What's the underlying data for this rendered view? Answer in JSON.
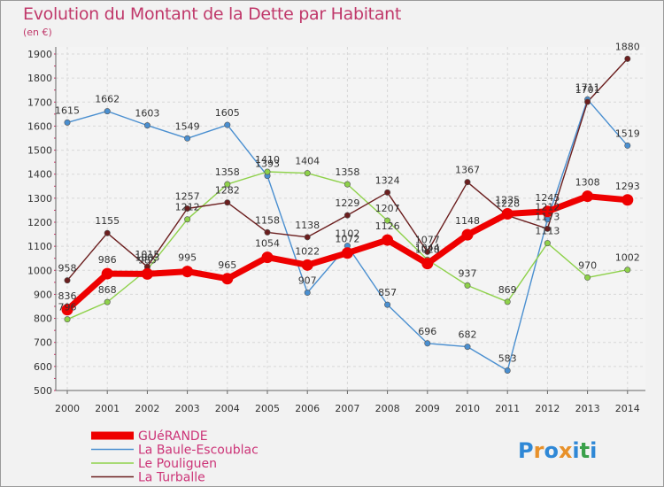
{
  "title": "Evolution du Montant de la Dette par Habitant",
  "unit": "(en €)",
  "logo": "Proxiti",
  "chart_data": {
    "type": "line",
    "x": [
      "2000",
      "2001",
      "2002",
      "2003",
      "2004",
      "2005",
      "2006",
      "2007",
      "2008",
      "2009",
      "2010",
      "2011",
      "2012",
      "2013",
      "2014"
    ],
    "ylim": [
      500,
      1900
    ],
    "yticks": [
      500,
      600,
      700,
      800,
      900,
      1000,
      1100,
      1200,
      1300,
      1400,
      1500,
      1600,
      1700,
      1800,
      1900
    ],
    "grid": true,
    "legend_position": "bottom-left",
    "series": [
      {
        "name": "La Baule-Escoublac",
        "color": "#4a8fd0",
        "values": [
          1615,
          1662,
          1603,
          1549,
          1605,
          1393,
          907,
          1102,
          857,
          696,
          682,
          583,
          1212,
          1711,
          1519
        ]
      },
      {
        "name": "Le Pouliguen",
        "color": "#8ed14a",
        "values": [
          796,
          868,
          1003,
          1212,
          1358,
          1410,
          1404,
          1358,
          1207,
          1044,
          937,
          869,
          1113,
          970,
          1002
        ]
      },
      {
        "name": "La Turballe",
        "color": "#6b1e1e",
        "values": [
          958,
          1155,
          1015,
          1257,
          1282,
          1158,
          1138,
          1229,
          1324,
          1077,
          1367,
          1228,
          1173,
          1701,
          1880
        ]
      },
      {
        "name": "GUéRANDE",
        "color": "#ee0000",
        "values": [
          836,
          986,
          985,
          995,
          965,
          1054,
          1022,
          1072,
          1126,
          1028,
          1148,
          1235,
          1245,
          1308,
          1293
        ]
      }
    ],
    "labels": [
      [
        "1615",
        "1662",
        "1603",
        "1549",
        "1605",
        "1393",
        "907",
        "1102",
        "857",
        "696",
        "682",
        "583",
        "1212",
        "1711",
        "1519"
      ],
      [
        "796",
        "868",
        "1003",
        "1212",
        "1358",
        "1410",
        "1404",
        "1358",
        "1207",
        "1044",
        "937",
        "869",
        "1113",
        "970",
        "1002"
      ],
      [
        "958",
        "1155",
        "1015",
        "1257",
        "1282",
        "1158",
        "1138",
        "1229",
        "1324",
        "1077",
        "1367",
        "1228",
        "1173",
        "1701",
        "1880"
      ],
      [
        "836",
        "986",
        "985",
        "995",
        "965",
        "1054",
        "1022",
        "1072",
        "1126",
        "1028",
        "1148",
        "1235",
        "1245",
        "1308",
        "1293"
      ]
    ]
  }
}
